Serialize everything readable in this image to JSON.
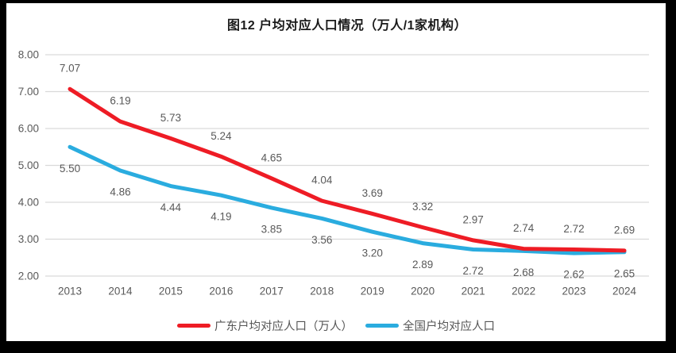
{
  "frame": {
    "title": "图12 户均对应人口情况（万人/1家机构）"
  },
  "chart_data": {
    "type": "line",
    "title": "图12 户均对应人口情况（万人/1家机构）",
    "categories": [
      "2013",
      "2014",
      "2015",
      "2016",
      "2017",
      "2018",
      "2019",
      "2020",
      "2021",
      "2022",
      "2023",
      "2024"
    ],
    "series": [
      {
        "name": "广东户均对应人口（万人）",
        "color": "#ee1c25",
        "values": [
          7.07,
          6.19,
          5.73,
          5.24,
          4.65,
          4.04,
          3.69,
          3.32,
          2.97,
          2.74,
          2.72,
          2.69
        ],
        "label_position": "above"
      },
      {
        "name": "全国户均对应人口",
        "color": "#2aacdf",
        "values": [
          5.5,
          4.86,
          4.44,
          4.19,
          3.85,
          3.56,
          3.2,
          2.89,
          2.72,
          2.68,
          2.62,
          2.65
        ],
        "label_position": "below"
      }
    ],
    "ylim": [
      2.0,
      8.0
    ],
    "yticks": [
      "2.00",
      "3.00",
      "4.00",
      "5.00",
      "6.00",
      "7.00",
      "8.00"
    ],
    "xlabel": "",
    "ylabel": "",
    "grid": "horizontal",
    "legend_position": "bottom",
    "gridline_color": "#d9d9d9",
    "tick_label_color": "#595959",
    "data_label_color": "#595959"
  }
}
